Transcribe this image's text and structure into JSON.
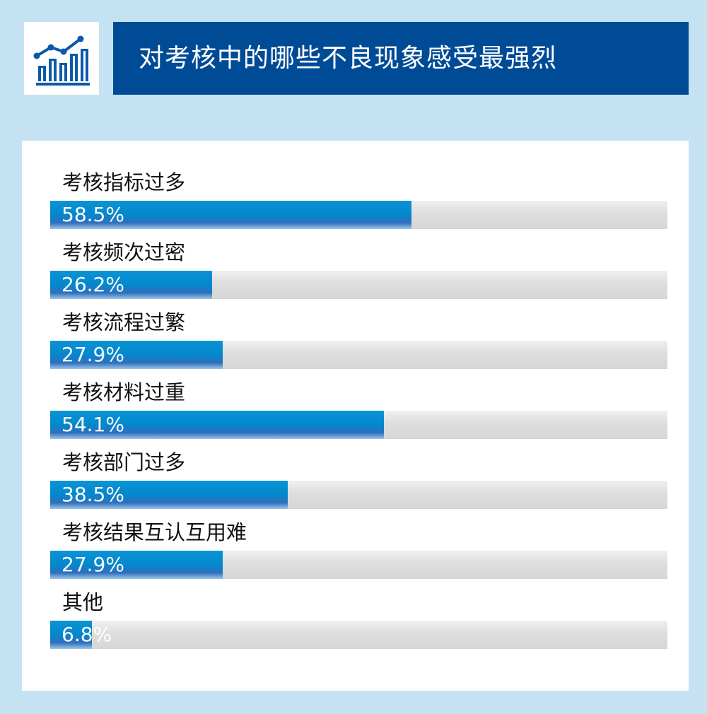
{
  "header": {
    "title": "对考核中的哪些不良现象感受最强烈",
    "icon": "bar-chart-trend-icon"
  },
  "colors": {
    "background": "#c5e2f3",
    "title_bar": "#004b96",
    "bar_fill": "#0387cd",
    "bar_track": "#dedede"
  },
  "chart_data": {
    "type": "bar",
    "orientation": "horizontal",
    "title": "对考核中的哪些不良现象感受最强烈",
    "categories": [
      "考核指标过多",
      "考核频次过密",
      "考核流程过繁",
      "考核材料过重",
      "考核部门过多",
      "考核结果互认互用难",
      "其他"
    ],
    "values": [
      58.5,
      26.2,
      27.9,
      54.1,
      38.5,
      27.9,
      6.8
    ],
    "value_labels": [
      "58.5%",
      "26.2%",
      "27.9%",
      "54.1%",
      "38.5%",
      "27.9%",
      "6.8%"
    ],
    "unit": "%",
    "xlim": [
      0,
      100
    ],
    "grid": false
  }
}
